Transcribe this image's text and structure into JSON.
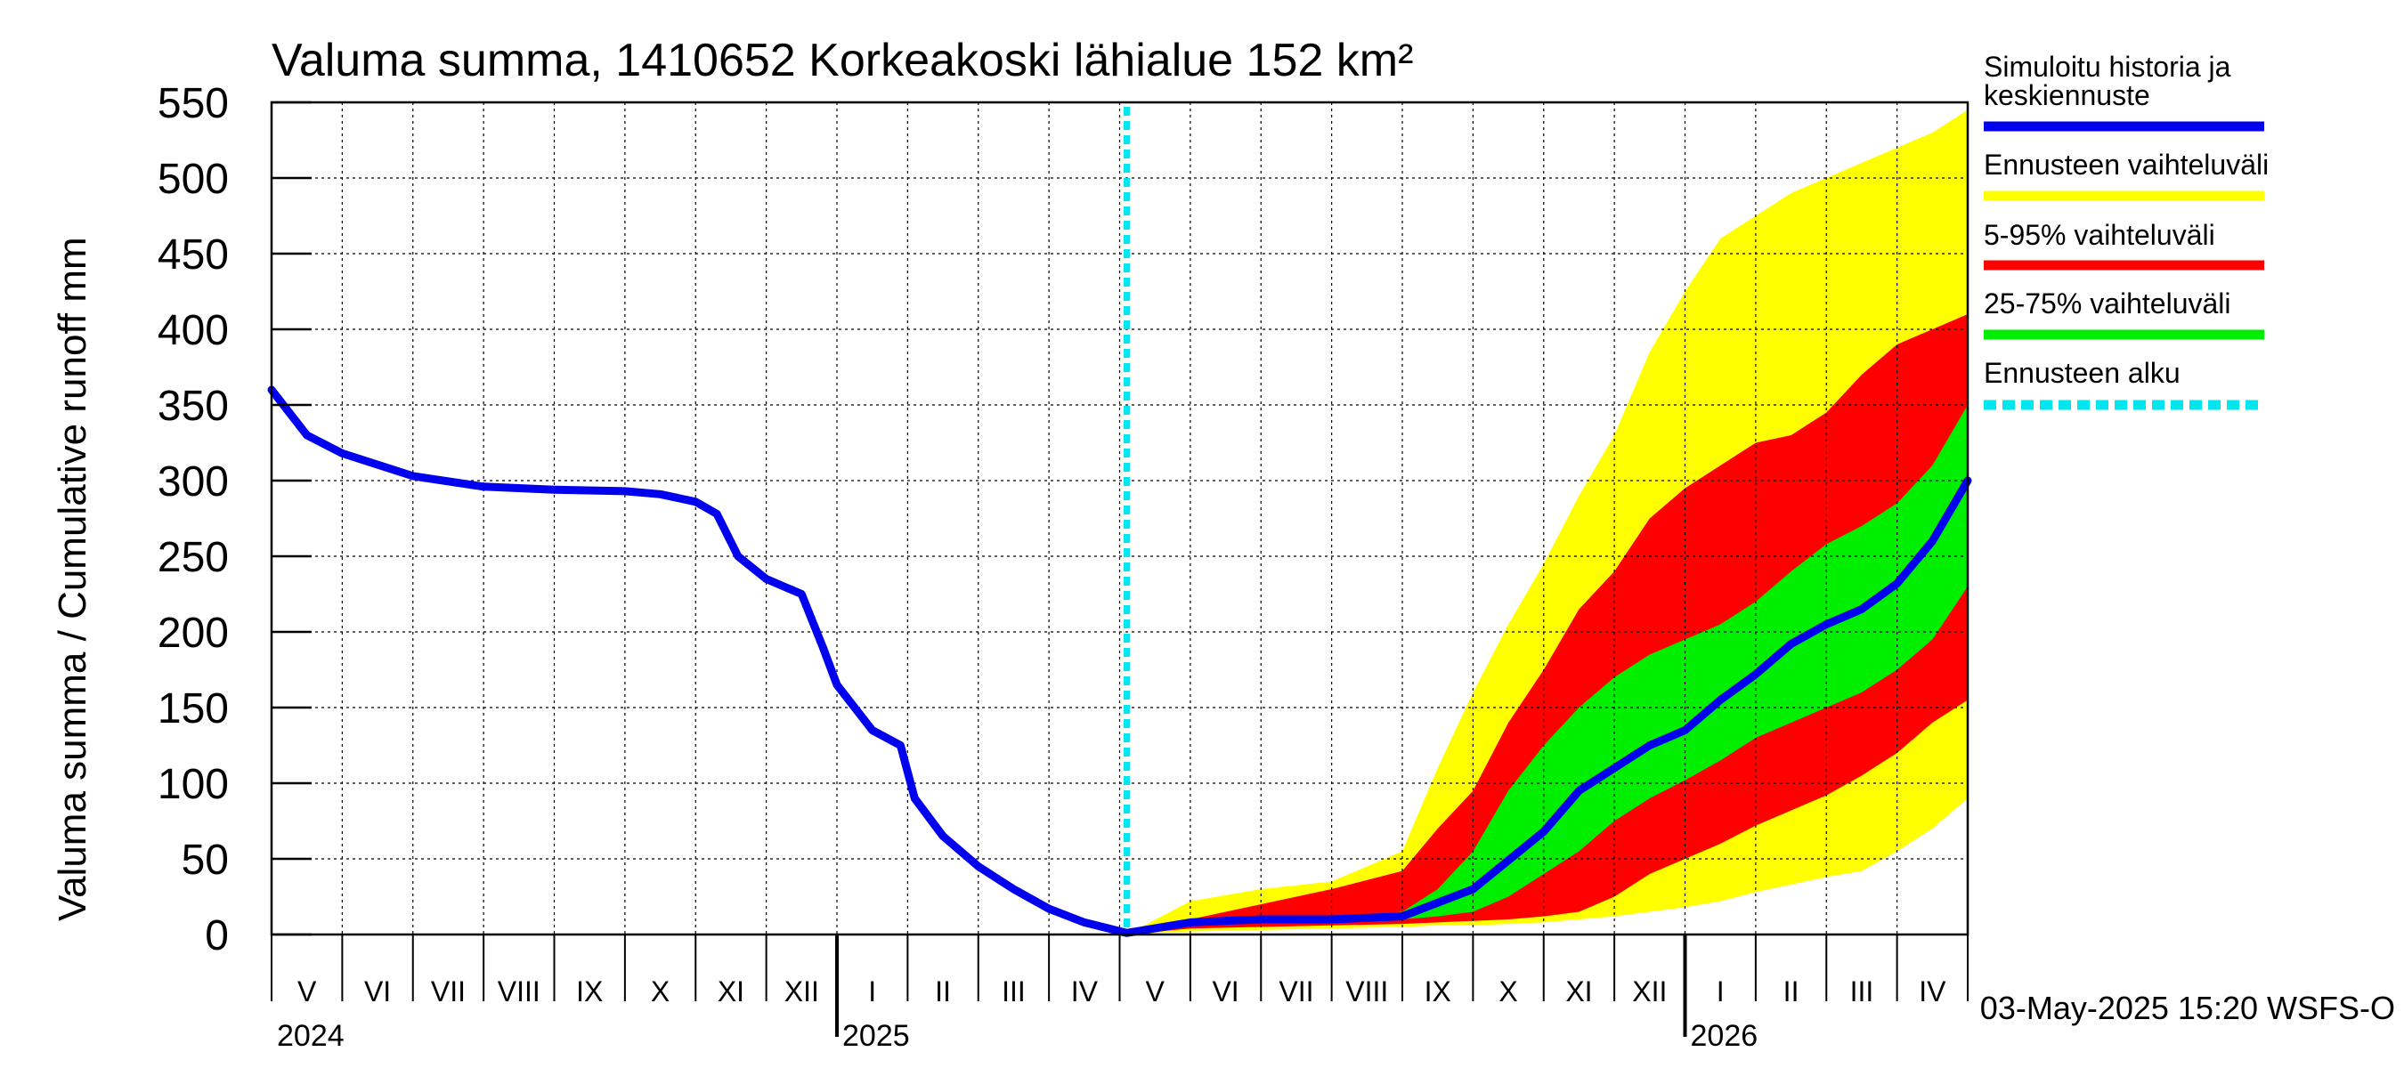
{
  "chart_data": {
    "type": "area",
    "title": "Valuma summa, 1410652 Korkeakoski lähialue 152 km²",
    "ylabel": "Valuma summa / Cumulative runoff    mm",
    "ylim": [
      0,
      550
    ],
    "y_ticks": [
      0,
      50,
      100,
      150,
      200,
      250,
      300,
      350,
      400,
      450,
      500,
      550
    ],
    "x_unit": "months since 2024-05-01",
    "xlim": [
      0,
      24
    ],
    "forecast_start_x": 12.1,
    "month_labels": [
      "V",
      "VI",
      "VII",
      "VIII",
      "IX",
      "X",
      "XI",
      "XII",
      "I",
      "II",
      "III",
      "IV",
      "V",
      "VI",
      "VII",
      "VIII",
      "IX",
      "X",
      "XI",
      "XII",
      "I",
      "II",
      "III",
      "IV"
    ],
    "year_labels": [
      {
        "label": "2024",
        "x": 0
      },
      {
        "label": "2025",
        "x": 8
      },
      {
        "label": "2026",
        "x": 20
      }
    ],
    "legend": [
      {
        "label": "Simuloitu historia ja keskiennuste",
        "color": "#0000ee",
        "style": "solid"
      },
      {
        "label": "Ennusteen vaihteluväli",
        "color": "#ffff00",
        "style": "solid"
      },
      {
        "label": "5-95% vaihteluväli",
        "color": "#ff0000",
        "style": "solid"
      },
      {
        "label": "25-75% vaihteluväli",
        "color": "#00ee00",
        "style": "solid"
      },
      {
        "label": "Ennusteen alku",
        "color": "#00e5ee",
        "style": "dashed"
      }
    ],
    "series": [
      {
        "name": "Simuloitu historia ja keskiennuste",
        "color": "#0000ee",
        "x": [
          0,
          0.5,
          1,
          2,
          3,
          4,
          5,
          5.5,
          6,
          6.3,
          6.6,
          7,
          7.5,
          7.8,
          8,
          8.5,
          8.9,
          9.1,
          9.5,
          10,
          10.5,
          11,
          11.5,
          12.1,
          13,
          14,
          15,
          16,
          17,
          18,
          18.5,
          19,
          19.5,
          20,
          20.5,
          21,
          21.5,
          22,
          22.5,
          23,
          23.5,
          24
        ],
        "y": [
          360,
          330,
          318,
          303,
          296,
          294,
          293,
          291,
          286,
          278,
          250,
          235,
          225,
          190,
          165,
          135,
          125,
          90,
          65,
          45,
          30,
          17,
          8,
          1,
          8,
          10,
          10,
          12,
          30,
          68,
          95,
          110,
          125,
          135,
          155,
          172,
          192,
          205,
          215,
          232,
          260,
          300
        ]
      }
    ],
    "bands": [
      {
        "name": "Ennusteen vaihteluväli",
        "color": "#ffff00",
        "x": [
          12.1,
          13,
          14,
          15,
          16,
          16.5,
          17,
          17.5,
          18,
          18.5,
          19,
          19.5,
          20,
          20.5,
          21,
          21.5,
          22,
          22.5,
          23,
          23.5,
          24
        ],
        "upper": [
          0,
          22,
          30,
          35,
          55,
          110,
          160,
          205,
          245,
          290,
          330,
          385,
          425,
          460,
          475,
          490,
          500,
          510,
          520,
          530,
          545
        ],
        "lower": [
          0,
          2,
          3,
          4,
          5,
          6,
          6,
          7,
          8,
          10,
          12,
          15,
          18,
          22,
          28,
          33,
          38,
          42,
          55,
          70,
          90
        ]
      },
      {
        "name": "5-95% vaihteluväli",
        "color": "#ff0000",
        "x": [
          12.1,
          13,
          14,
          15,
          16,
          16.5,
          17,
          17.5,
          18,
          18.5,
          19,
          19.5,
          20,
          20.5,
          21,
          21.5,
          22,
          22.5,
          23,
          23.5,
          24
        ],
        "upper": [
          0,
          10,
          20,
          30,
          42,
          70,
          95,
          140,
          175,
          215,
          240,
          275,
          295,
          310,
          325,
          330,
          345,
          370,
          390,
          400,
          410
        ],
        "lower": [
          0,
          4,
          5,
          6,
          7,
          8,
          9,
          10,
          12,
          15,
          25,
          40,
          50,
          60,
          72,
          82,
          92,
          105,
          120,
          140,
          155
        ]
      },
      {
        "name": "25-75% vaihteluväli",
        "color": "#00ee00",
        "x": [
          12.1,
          13,
          14,
          15,
          16,
          16.5,
          17,
          17.5,
          18,
          18.5,
          19,
          19.5,
          20,
          20.5,
          21,
          21.5,
          22,
          22.5,
          23,
          23.5,
          24
        ],
        "upper": [
          0,
          8,
          10,
          11,
          15,
          30,
          55,
          95,
          125,
          150,
          170,
          185,
          195,
          205,
          220,
          240,
          258,
          270,
          285,
          310,
          350
        ],
        "lower": [
          0,
          6,
          8,
          9,
          10,
          12,
          15,
          25,
          40,
          55,
          75,
          90,
          102,
          115,
          130,
          140,
          150,
          160,
          175,
          195,
          230
        ]
      }
    ]
  },
  "footer": {
    "timestamp": "03-May-2025 15:20 WSFS-O"
  }
}
